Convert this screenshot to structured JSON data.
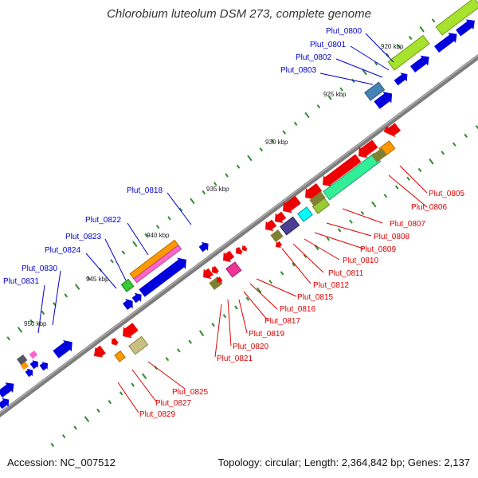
{
  "title": "Chlorobium luteolum DSM 273, complete genome",
  "footer": {
    "accession": "Accession: NC_007512",
    "topology": "Topology: circular; Length: 2,364,842 bp; Genes: 2,137"
  },
  "colors": {
    "backbone": "#8a8a8a",
    "forward_label": "#0000cc",
    "reverse_label": "#dd0000",
    "ticks": "#2e8b2e"
  },
  "kbp_markers": [
    "920 kbp",
    "925 kbp",
    "930 kbp",
    "935 kbp",
    "940 kbp",
    "945 kbp",
    "950 kbp"
  ],
  "forward_gene_labels": [
    "Plut_0800",
    "Plut_0801",
    "Plut_0802",
    "Plut_0803",
    "Plut_0818",
    "Plut_0822",
    "Plut_0823",
    "Plut_0824",
    "Plut_0830",
    "Plut_0831"
  ],
  "reverse_gene_labels": [
    "Plut_0805",
    "Plut_0806",
    "Plut_0807",
    "Plut_0808",
    "Plut_0809",
    "Plut_0810",
    "Plut_0811",
    "Plut_0812",
    "Plut_0815",
    "Plut_0816",
    "Plut_0817",
    "Plut_0819",
    "Plut_0820",
    "Plut_0821",
    "Plut_0825",
    "Plut_0827",
    "Plut_0829"
  ]
}
